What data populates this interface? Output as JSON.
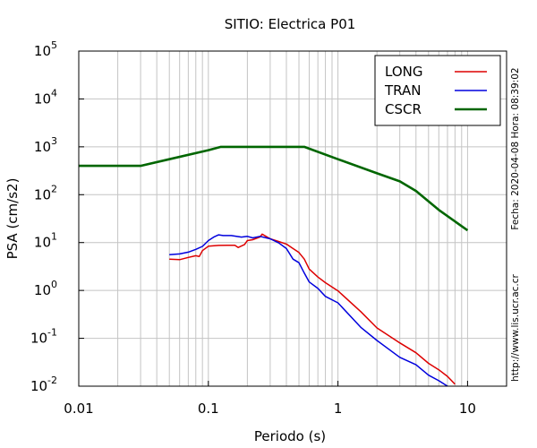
{
  "chart_data": {
    "type": "line",
    "title": "SITIO: Electrica P01",
    "xlabel": "Periodo (s)",
    "ylabel": "PSA (cm/s2)",
    "x_scale": "log",
    "y_scale": "log",
    "xlim": [
      0.01,
      20
    ],
    "ylim": [
      0.01,
      100000
    ],
    "x_ticks": [
      {
        "value": 0.01,
        "label": "0.01"
      },
      {
        "value": 0.1,
        "label": "0.1"
      },
      {
        "value": 1,
        "label": "1"
      },
      {
        "value": 10,
        "label": "10"
      }
    ],
    "y_ticks": [
      {
        "value": 0.01,
        "base": "10",
        "exp": "-2"
      },
      {
        "value": 0.1,
        "base": "10",
        "exp": "-1"
      },
      {
        "value": 1,
        "base": "10",
        "exp": "0"
      },
      {
        "value": 10,
        "base": "10",
        "exp": "1"
      },
      {
        "value": 100,
        "base": "10",
        "exp": "2"
      },
      {
        "value": 1000,
        "base": "10",
        "exp": "3"
      },
      {
        "value": 10000,
        "base": "10",
        "exp": "4"
      },
      {
        "value": 100000,
        "base": "10",
        "exp": "5"
      }
    ],
    "grid": true,
    "legend_position": "top-right",
    "series": [
      {
        "name": "LONG",
        "color": "#dd0000",
        "x": [
          0.05,
          0.06,
          0.07,
          0.08,
          0.085,
          0.09,
          0.1,
          0.12,
          0.14,
          0.16,
          0.17,
          0.19,
          0.2,
          0.22,
          0.25,
          0.26,
          0.3,
          0.35,
          0.4,
          0.45,
          0.5,
          0.55,
          0.6,
          0.7,
          0.8,
          1.0,
          1.5,
          2.0,
          3.0,
          4.0,
          5.0,
          6.0,
          7.0,
          8.0
        ],
        "y": [
          4.5,
          4.4,
          4.9,
          5.3,
          5.1,
          6.8,
          8.4,
          8.7,
          8.8,
          8.8,
          7.9,
          9.1,
          11.0,
          11.5,
          13.0,
          15.0,
          12.0,
          10.5,
          9.3,
          7.5,
          6.2,
          4.5,
          2.8,
          1.9,
          1.45,
          0.98,
          0.36,
          0.165,
          0.08,
          0.05,
          0.03,
          0.022,
          0.016,
          0.011
        ]
      },
      {
        "name": "TRAN",
        "color": "#0000dd",
        "x": [
          0.05,
          0.06,
          0.07,
          0.08,
          0.09,
          0.1,
          0.11,
          0.12,
          0.13,
          0.15,
          0.18,
          0.2,
          0.22,
          0.25,
          0.28,
          0.3,
          0.35,
          0.4,
          0.45,
          0.5,
          0.55,
          0.6,
          0.7,
          0.8,
          1.0,
          1.5,
          2.0,
          3.0,
          4.0,
          5.0,
          6.0,
          7.0
        ],
        "y": [
          5.6,
          5.8,
          6.3,
          7.2,
          8.3,
          11.0,
          13.0,
          14.5,
          14.0,
          14.0,
          13.0,
          13.5,
          12.5,
          13.5,
          12.5,
          12.0,
          9.8,
          7.5,
          4.5,
          3.8,
          2.3,
          1.5,
          1.1,
          0.75,
          0.55,
          0.17,
          0.09,
          0.04,
          0.028,
          0.017,
          0.013,
          0.01
        ]
      },
      {
        "name": "CSCR",
        "color": "#006600",
        "x": [
          0.01,
          0.03,
          0.05,
          0.1,
          0.125,
          0.2,
          0.55,
          1.0,
          2.0,
          3.0,
          4.0,
          6.0,
          10.0
        ],
        "y": [
          400,
          400,
          550,
          850,
          1000,
          1000,
          1000,
          550,
          280,
          190,
          120,
          48,
          18
        ]
      }
    ]
  },
  "annotations": {
    "date": "Fecha: 2020-04-08 Hora: 08:39:02",
    "url": "http://www.lis.ucr.ac.cr"
  },
  "colors": {
    "grid": "#c4c4c4",
    "axis": "#000000",
    "background": "#ffffff"
  }
}
